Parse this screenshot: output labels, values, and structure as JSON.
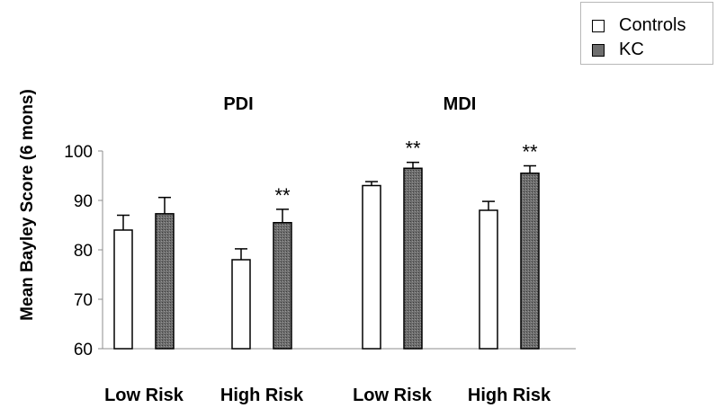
{
  "chart_data": {
    "type": "bar",
    "ylabel": "Mean Bayley Score (6 mons)",
    "ylim": [
      60,
      100
    ],
    "yticks": [
      60,
      70,
      80,
      90,
      100
    ],
    "groups": [
      {
        "name": "PDI",
        "categories": [
          "Low Risk",
          "High Risk"
        ]
      },
      {
        "name": "MDI",
        "categories": [
          "Low Risk",
          "High Risk"
        ]
      }
    ],
    "categories": [
      "Low Risk",
      "High Risk",
      "Low Risk",
      "High Risk"
    ],
    "series": [
      {
        "name": "Controls",
        "color": "#ffffff",
        "values": [
          84,
          78,
          93,
          88
        ],
        "errors": [
          3,
          2.2,
          0.8,
          1.8
        ]
      },
      {
        "name": "KC",
        "color": "#6e6e6e",
        "values": [
          87.3,
          85.5,
          96.5,
          95.5
        ],
        "errors": [
          3.3,
          2.7,
          1.2,
          1.5
        ]
      }
    ],
    "annotations": [
      {
        "category_index": 1,
        "series": "KC",
        "text": "**"
      },
      {
        "category_index": 2,
        "series": "KC",
        "text": "**"
      },
      {
        "category_index": 3,
        "series": "KC",
        "text": "**"
      }
    ],
    "legend": "top-right",
    "grid": false
  }
}
